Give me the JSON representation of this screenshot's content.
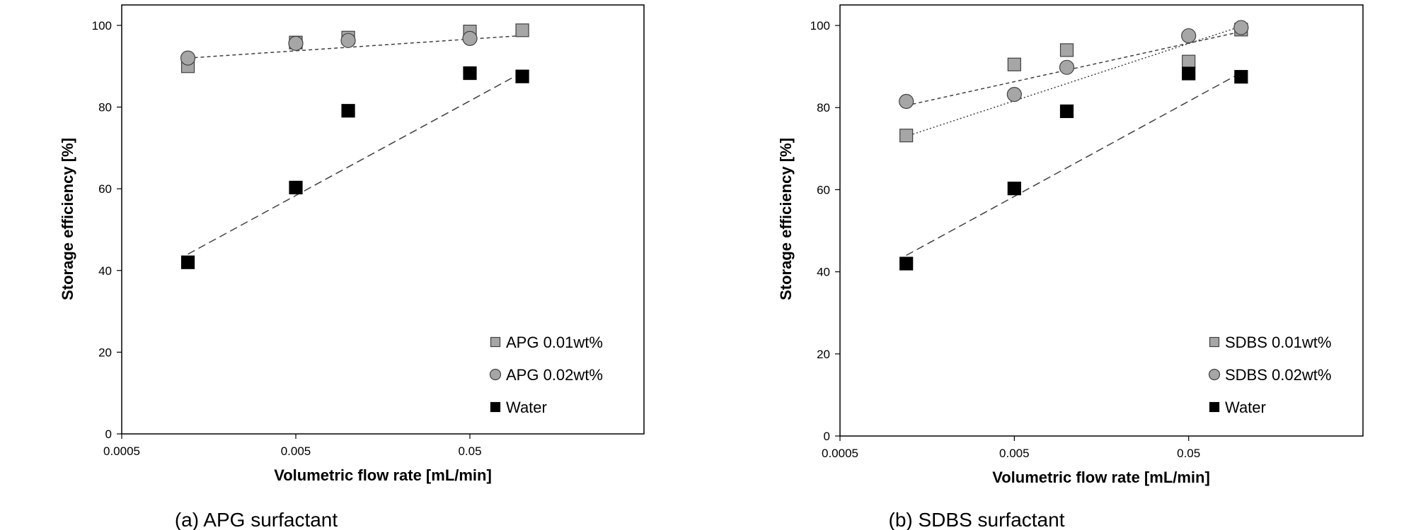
{
  "chart_data": [
    {
      "type": "scatter",
      "panel_caption": "(a) APG surfactant",
      "xlabel": "Volumetric flow rate [mL/min]",
      "ylabel": "Storage efficiency [%]",
      "x_scale": "log",
      "xlim": [
        0.0005,
        0.5
      ],
      "ylim": [
        0,
        105
      ],
      "x_ticks": [
        0.0005,
        0.005,
        0.05
      ],
      "x_tick_labels": [
        "0.0005",
        "0.005",
        "0.05"
      ],
      "y_ticks": [
        0,
        20,
        40,
        60,
        80,
        100
      ],
      "y_tick_labels": [
        "0",
        "20",
        "40",
        "60",
        "80",
        "100"
      ],
      "grid": false,
      "legend_position": "bottom-right",
      "series": [
        {
          "name": "APG 0.01wt%",
          "marker": "square",
          "color": "#a6a6a6",
          "x": [
            0.0012,
            0.005,
            0.01,
            0.05,
            0.1
          ],
          "y": [
            90.0,
            95.8,
            97.0,
            98.5,
            98.8
          ],
          "trend": {
            "x": [
              0.0012,
              0.1
            ],
            "y": [
              92.0,
              97.5
            ],
            "dash": "short"
          }
        },
        {
          "name": "APG 0.02wt%",
          "marker": "circle",
          "color": "#a6a6a6",
          "x": [
            0.0012,
            0.005,
            0.01,
            0.05
          ],
          "y": [
            92.0,
            95.6,
            96.3,
            96.8
          ],
          "trend": null
        },
        {
          "name": "Water",
          "marker": "square",
          "color": "#000000",
          "x": [
            0.0012,
            0.005,
            0.01,
            0.05,
            0.1
          ],
          "y": [
            42.0,
            60.3,
            79.1,
            88.3,
            87.5
          ],
          "trend": {
            "x": [
              0.0012,
              0.1
            ],
            "y": [
              44.0,
              88.5
            ],
            "dash": "long"
          }
        }
      ]
    },
    {
      "type": "scatter",
      "panel_caption": "(b) SDBS surfactant",
      "xlabel": "Volumetric flow rate [mL/min]",
      "ylabel": "Storage efficiency [%]",
      "x_scale": "log",
      "xlim": [
        0.0005,
        0.5
      ],
      "ylim": [
        0,
        105
      ],
      "x_ticks": [
        0.0005,
        0.005,
        0.05
      ],
      "x_tick_labels": [
        "0.0005",
        "0.005",
        "0.05"
      ],
      "y_ticks": [
        0,
        20,
        40,
        60,
        80,
        100
      ],
      "y_tick_labels": [
        "0",
        "20",
        "40",
        "60",
        "80",
        "100"
      ],
      "grid": false,
      "legend_position": "bottom-right",
      "series": [
        {
          "name": "SDBS 0.01wt%",
          "marker": "square",
          "color": "#a6a6a6",
          "x": [
            0.0012,
            0.005,
            0.01,
            0.05,
            0.1
          ],
          "y": [
            73.2,
            90.5,
            94.0,
            91.2,
            99.0
          ],
          "trend": {
            "x": [
              0.0012,
              0.1
            ],
            "y": [
              73.0,
              99.8
            ],
            "dash": "dotted"
          }
        },
        {
          "name": "SDBS 0.02wt%",
          "marker": "circle",
          "color": "#a6a6a6",
          "x": [
            0.0012,
            0.005,
            0.01,
            0.05,
            0.1
          ],
          "y": [
            81.5,
            83.2,
            89.8,
            97.5,
            99.5
          ],
          "trend": {
            "x": [
              0.0012,
              0.1
            ],
            "y": [
              80.5,
              98.5
            ],
            "dash": "short"
          }
        },
        {
          "name": "Water",
          "marker": "square",
          "color": "#000000",
          "x": [
            0.0012,
            0.005,
            0.01,
            0.05,
            0.1
          ],
          "y": [
            42.0,
            60.3,
            79.1,
            88.3,
            87.5
          ],
          "trend": {
            "x": [
              0.0012,
              0.1
            ],
            "y": [
              44.0,
              88.5
            ],
            "dash": "long"
          }
        }
      ]
    }
  ]
}
